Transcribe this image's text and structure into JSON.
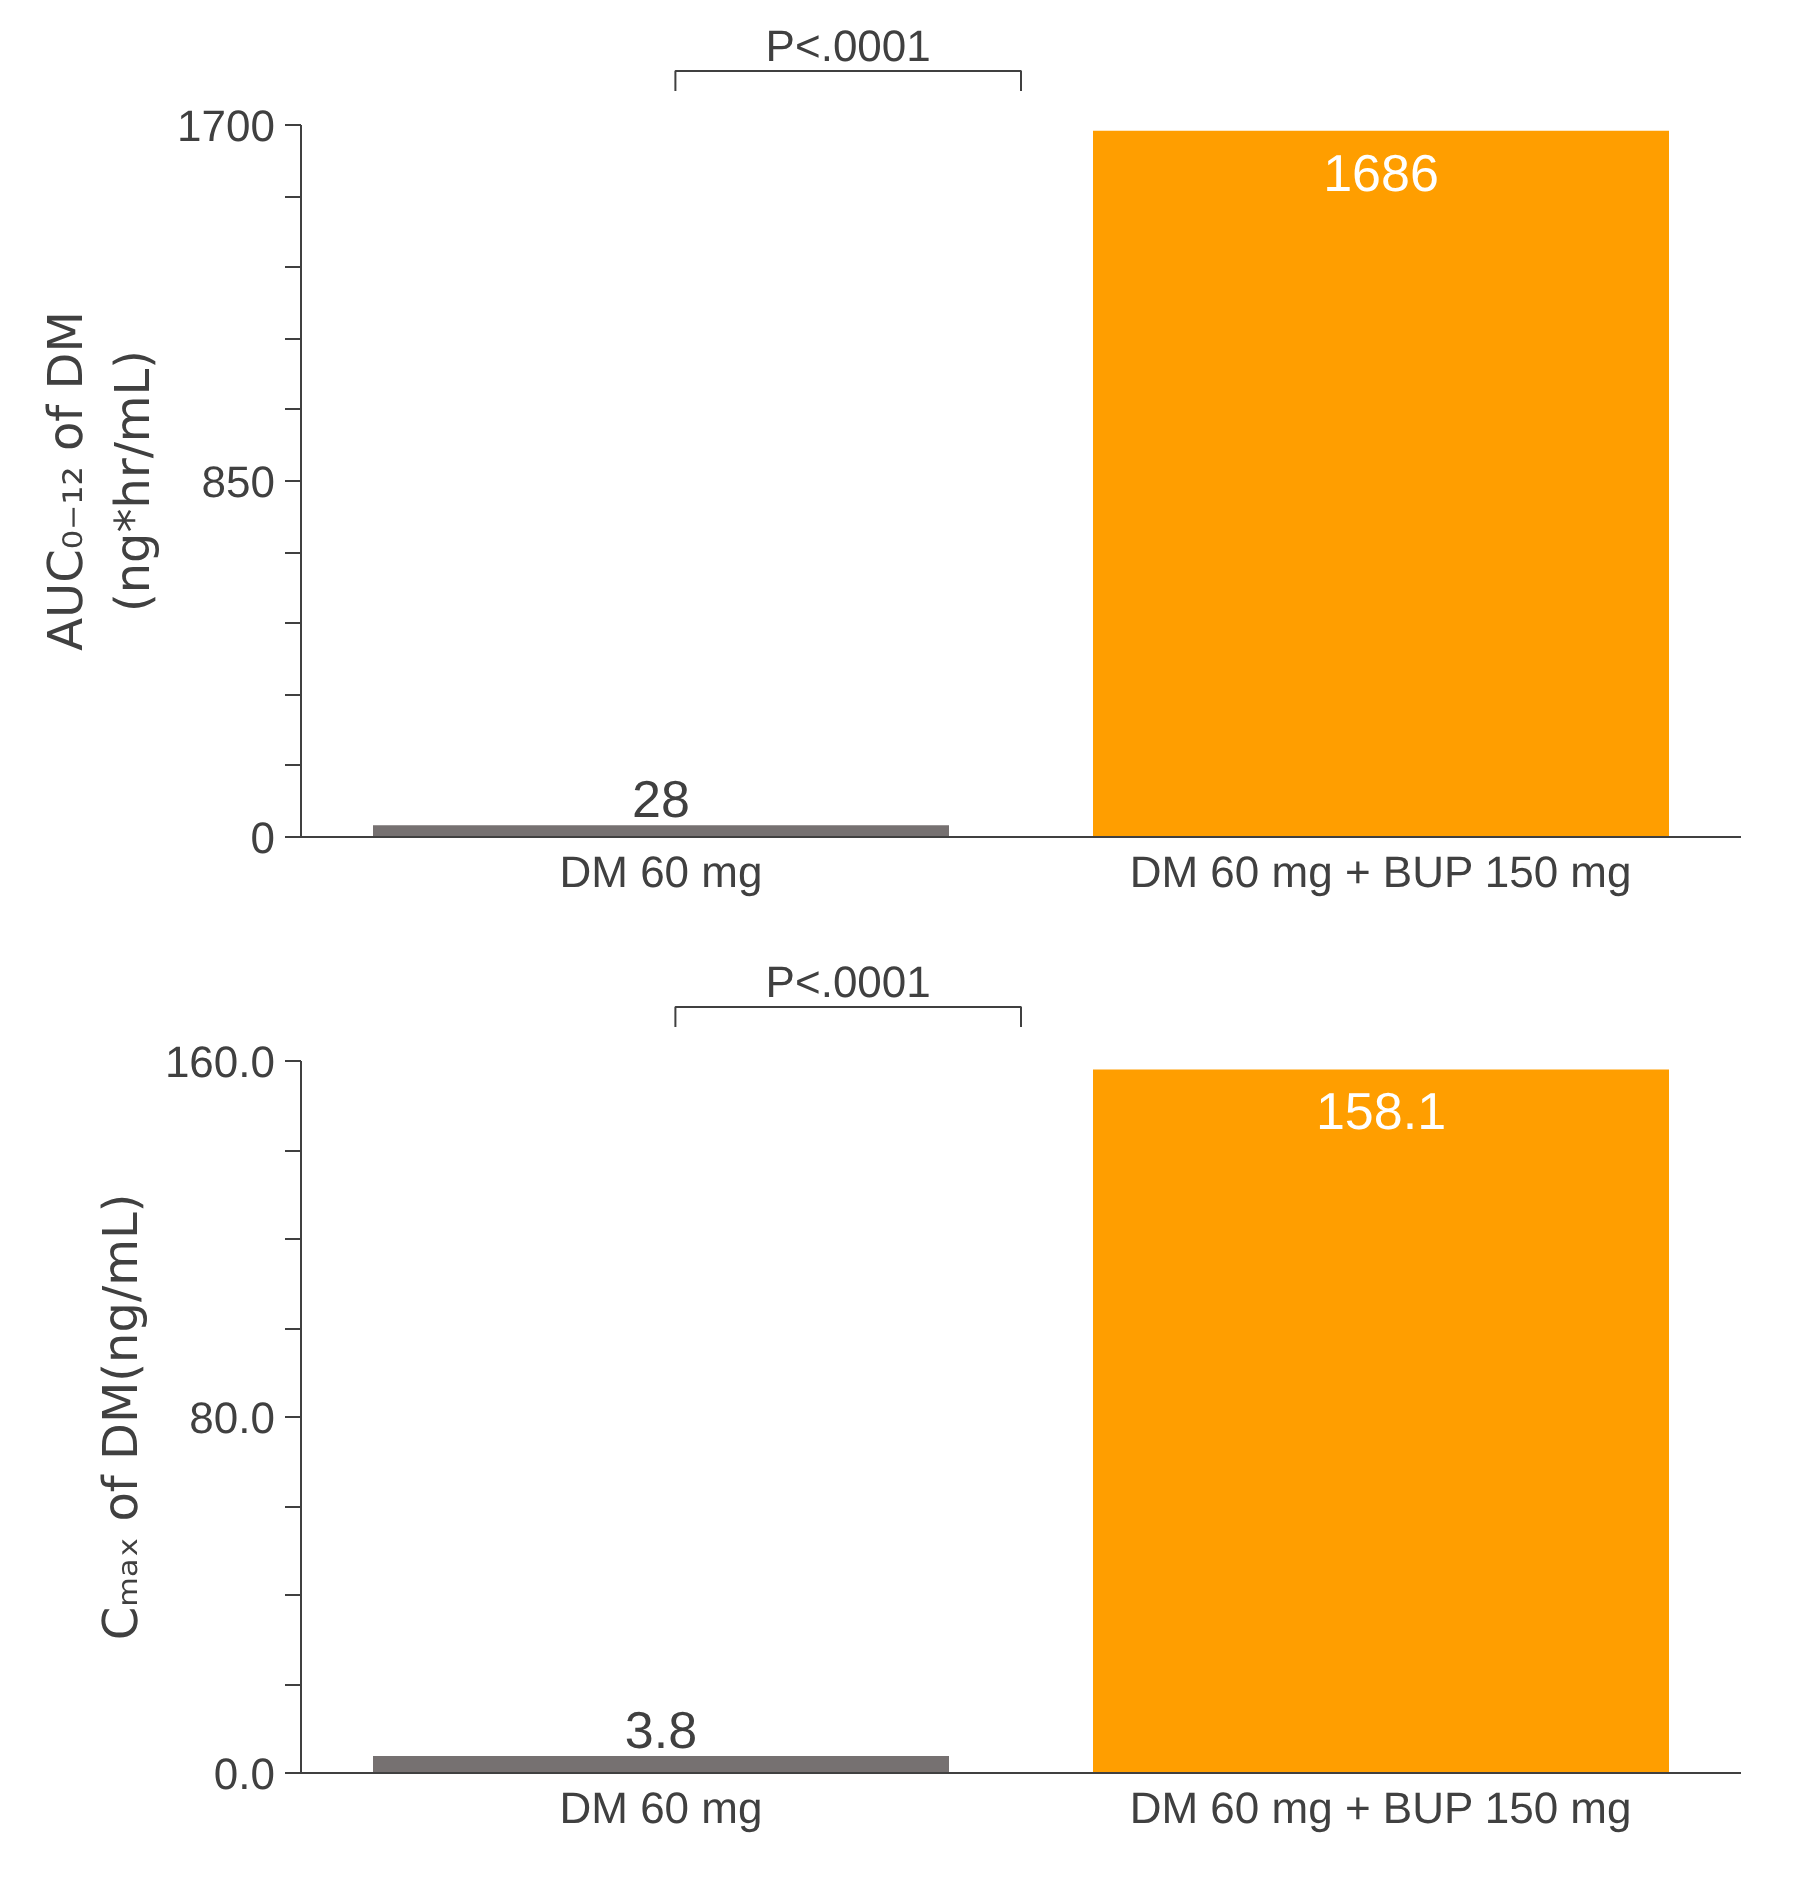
{
  "chart_data": [
    {
      "type": "bar",
      "ylabel": "AUC₀₋₁₂ of DM\n(ng*hr/mL)",
      "categories": [
        "DM 60 mg",
        "DM 60 mg + BUP 150 mg"
      ],
      "values": [
        28,
        1686
      ],
      "colors": [
        "#767171",
        "#ff9e00"
      ],
      "ylim": [
        0,
        1700
      ],
      "yticks": [
        0,
        {
          "value": 170,
          "label": null
        },
        {
          "value": 340,
          "label": null
        },
        {
          "value": 510,
          "label": null
        },
        {
          "value": 680,
          "label": null
        },
        850,
        {
          "value": 1020,
          "label": null
        },
        {
          "value": 1190,
          "label": null
        },
        {
          "value": 1360,
          "label": null
        },
        {
          "value": 1530,
          "label": null
        },
        1700
      ],
      "data_labels": true,
      "grid": false,
      "annotations": [
        "P<.0001"
      ]
    },
    {
      "type": "bar",
      "ylabel": "Cₘₐₓ of DM(ng/mL)",
      "categories": [
        "DM 60 mg",
        "DM 60 mg + BUP 150 mg"
      ],
      "values": [
        3.8,
        158.1
      ],
      "colors": [
        "#767171",
        "#ff9e00"
      ],
      "ylim": [
        0,
        160
      ],
      "yticks": [
        {
          "value": 0,
          "label": "0.0"
        },
        {
          "value": 20,
          "label": null
        },
        {
          "value": 40,
          "label": null
        },
        {
          "value": 60,
          "label": null
        },
        {
          "value": 80,
          "label": "80.0"
        },
        {
          "value": 100,
          "label": null
        },
        {
          "value": 120,
          "label": null
        },
        {
          "value": 140,
          "label": null
        },
        {
          "value": 160,
          "label": "160.0"
        }
      ],
      "data_labels": true,
      "grid": false,
      "annotations": [
        "P<.0001"
      ]
    }
  ]
}
